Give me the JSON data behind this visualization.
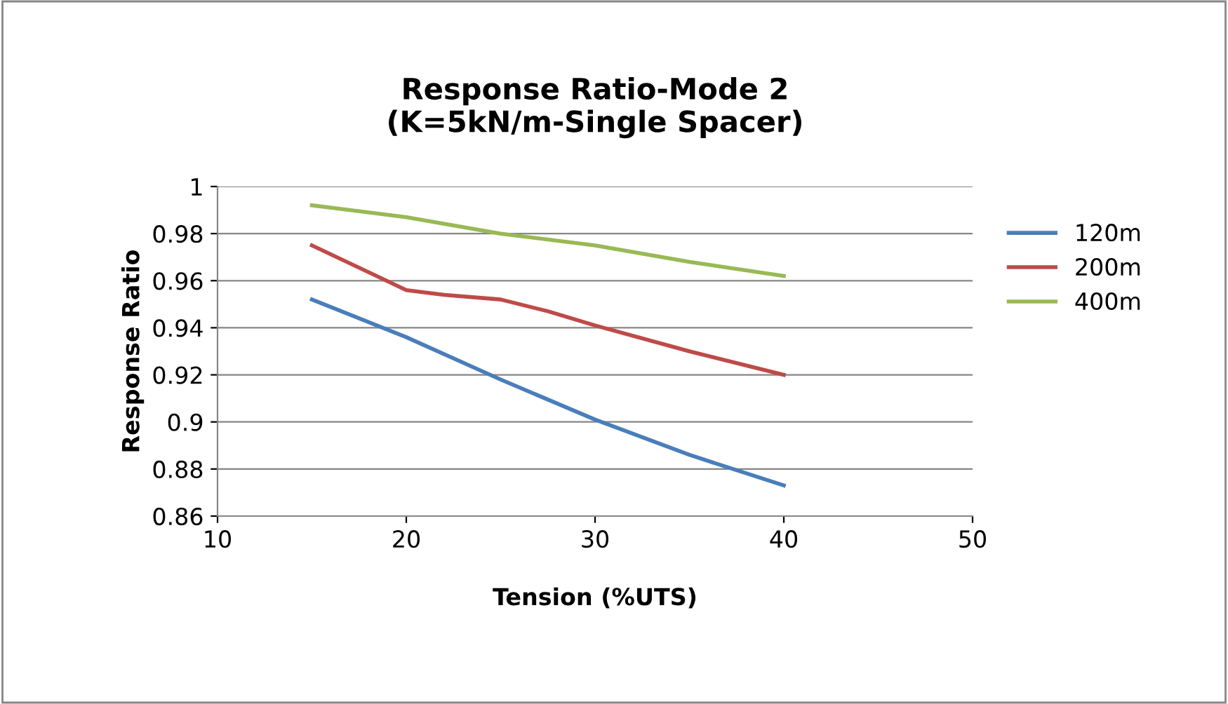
{
  "chart_data": {
    "type": "line",
    "title": "Response Ratio-Mode 2\n(K=5kN/m-Single Spacer)",
    "xlabel": "Tension (%UTS)",
    "ylabel": "Response Ratio",
    "x": [
      15,
      20,
      25,
      30,
      35,
      40
    ],
    "series": [
      {
        "name": "120m",
        "color": "#4a7ebb",
        "values": [
          0.952,
          0.936,
          0.918,
          0.901,
          0.886,
          0.873
        ]
      },
      {
        "name": "200m",
        "color": "#be4b48",
        "x": [
          15,
          20,
          22,
          25,
          27.5,
          30,
          35,
          40
        ],
        "values": [
          0.975,
          0.956,
          0.954,
          0.952,
          0.947,
          0.941,
          0.93,
          0.92
        ]
      },
      {
        "name": "400m",
        "color": "#98b954",
        "values": [
          0.992,
          0.987,
          0.98,
          0.975,
          0.968,
          0.962
        ]
      }
    ],
    "xlim": [
      10,
      50
    ],
    "xticks": [
      10,
      20,
      30,
      40,
      50
    ],
    "ylim": [
      0.86,
      1
    ],
    "yticks": [
      0.86,
      0.88,
      {
        "value": 0.9,
        "label": "0.9"
      },
      0.92,
      0.94,
      0.96,
      0.98,
      {
        "value": 1,
        "label": "1"
      }
    ],
    "grid": "y",
    "legend": "right",
    "marker": "none",
    "line_style": "solid"
  }
}
